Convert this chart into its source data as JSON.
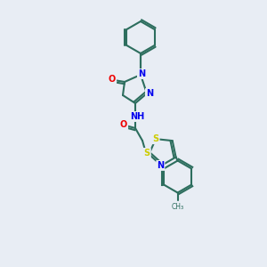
{
  "background_color": "#e8edf4",
  "bond_color": "#2d6e5e",
  "bond_width": 1.5,
  "atom_colors": {
    "N": "#0000ee",
    "O": "#ee0000",
    "S": "#cccc00",
    "C": "#2d6e5e",
    "H": "#2d6e5e"
  },
  "figsize": [
    3.0,
    3.0
  ],
  "dpi": 100
}
